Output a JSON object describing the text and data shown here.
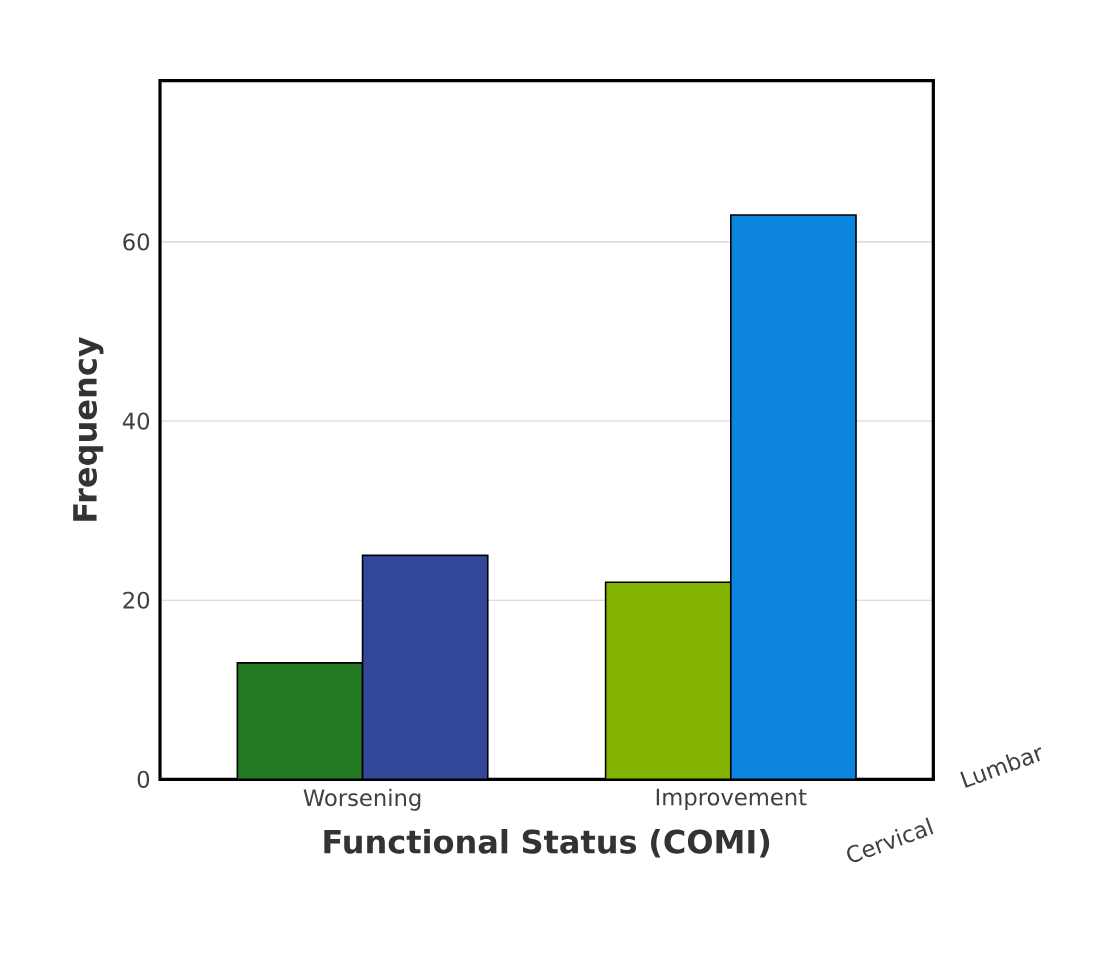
{
  "chart_data": {
    "type": "bar",
    "xlabel": "Functional Status (COMI)",
    "ylabel": "Frequency",
    "categories": [
      "Worsening",
      "Improvement"
    ],
    "series": [
      {
        "name": "Cervical",
        "colors": [
          "#237a23",
          "#82b300"
        ],
        "values": [
          13,
          22
        ]
      },
      {
        "name": "Lumbar",
        "colors": [
          "#33489b",
          "#0b85e0"
        ],
        "values": [
          25,
          63
        ]
      }
    ],
    "ylim": [
      0,
      78
    ],
    "yticks": [
      0,
      20,
      40,
      60
    ],
    "grid": "y"
  }
}
